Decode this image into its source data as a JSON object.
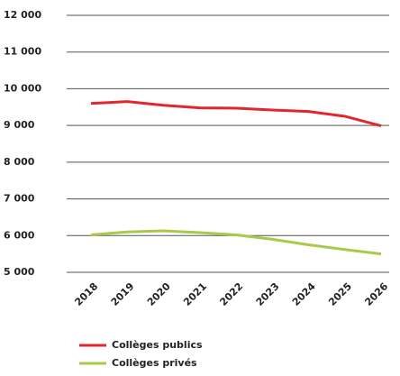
{
  "chart_data": {
    "type": "line",
    "categories": [
      "2018",
      "2019",
      "2020",
      "2021",
      "2022",
      "2023",
      "2024",
      "2025",
      "2026"
    ],
    "series": [
      {
        "name": "Collèges publics",
        "color": "#e3262b",
        "values": [
          9600,
          9650,
          9550,
          9480,
          9470,
          9420,
          9380,
          9250,
          8990
        ]
      },
      {
        "name": "Collèges privés",
        "color": "#a8c94a",
        "values": [
          6020,
          6100,
          6130,
          6080,
          6020,
          5900,
          5750,
          5620,
          5500
        ]
      }
    ],
    "ylim": [
      5000,
      12000
    ],
    "yticks": [
      {
        "value": 5000,
        "label": "5 000"
      },
      {
        "value": 6000,
        "label": "6 000"
      },
      {
        "value": 7000,
        "label": "7 000"
      },
      {
        "value": 8000,
        "label": "8 000"
      },
      {
        "value": 9000,
        "label": "9 000"
      },
      {
        "value": 10000,
        "label": "10 000"
      },
      {
        "value": 11000,
        "label": "11 000"
      },
      {
        "value": 12000,
        "label": "12 000"
      }
    ],
    "grid": true
  }
}
